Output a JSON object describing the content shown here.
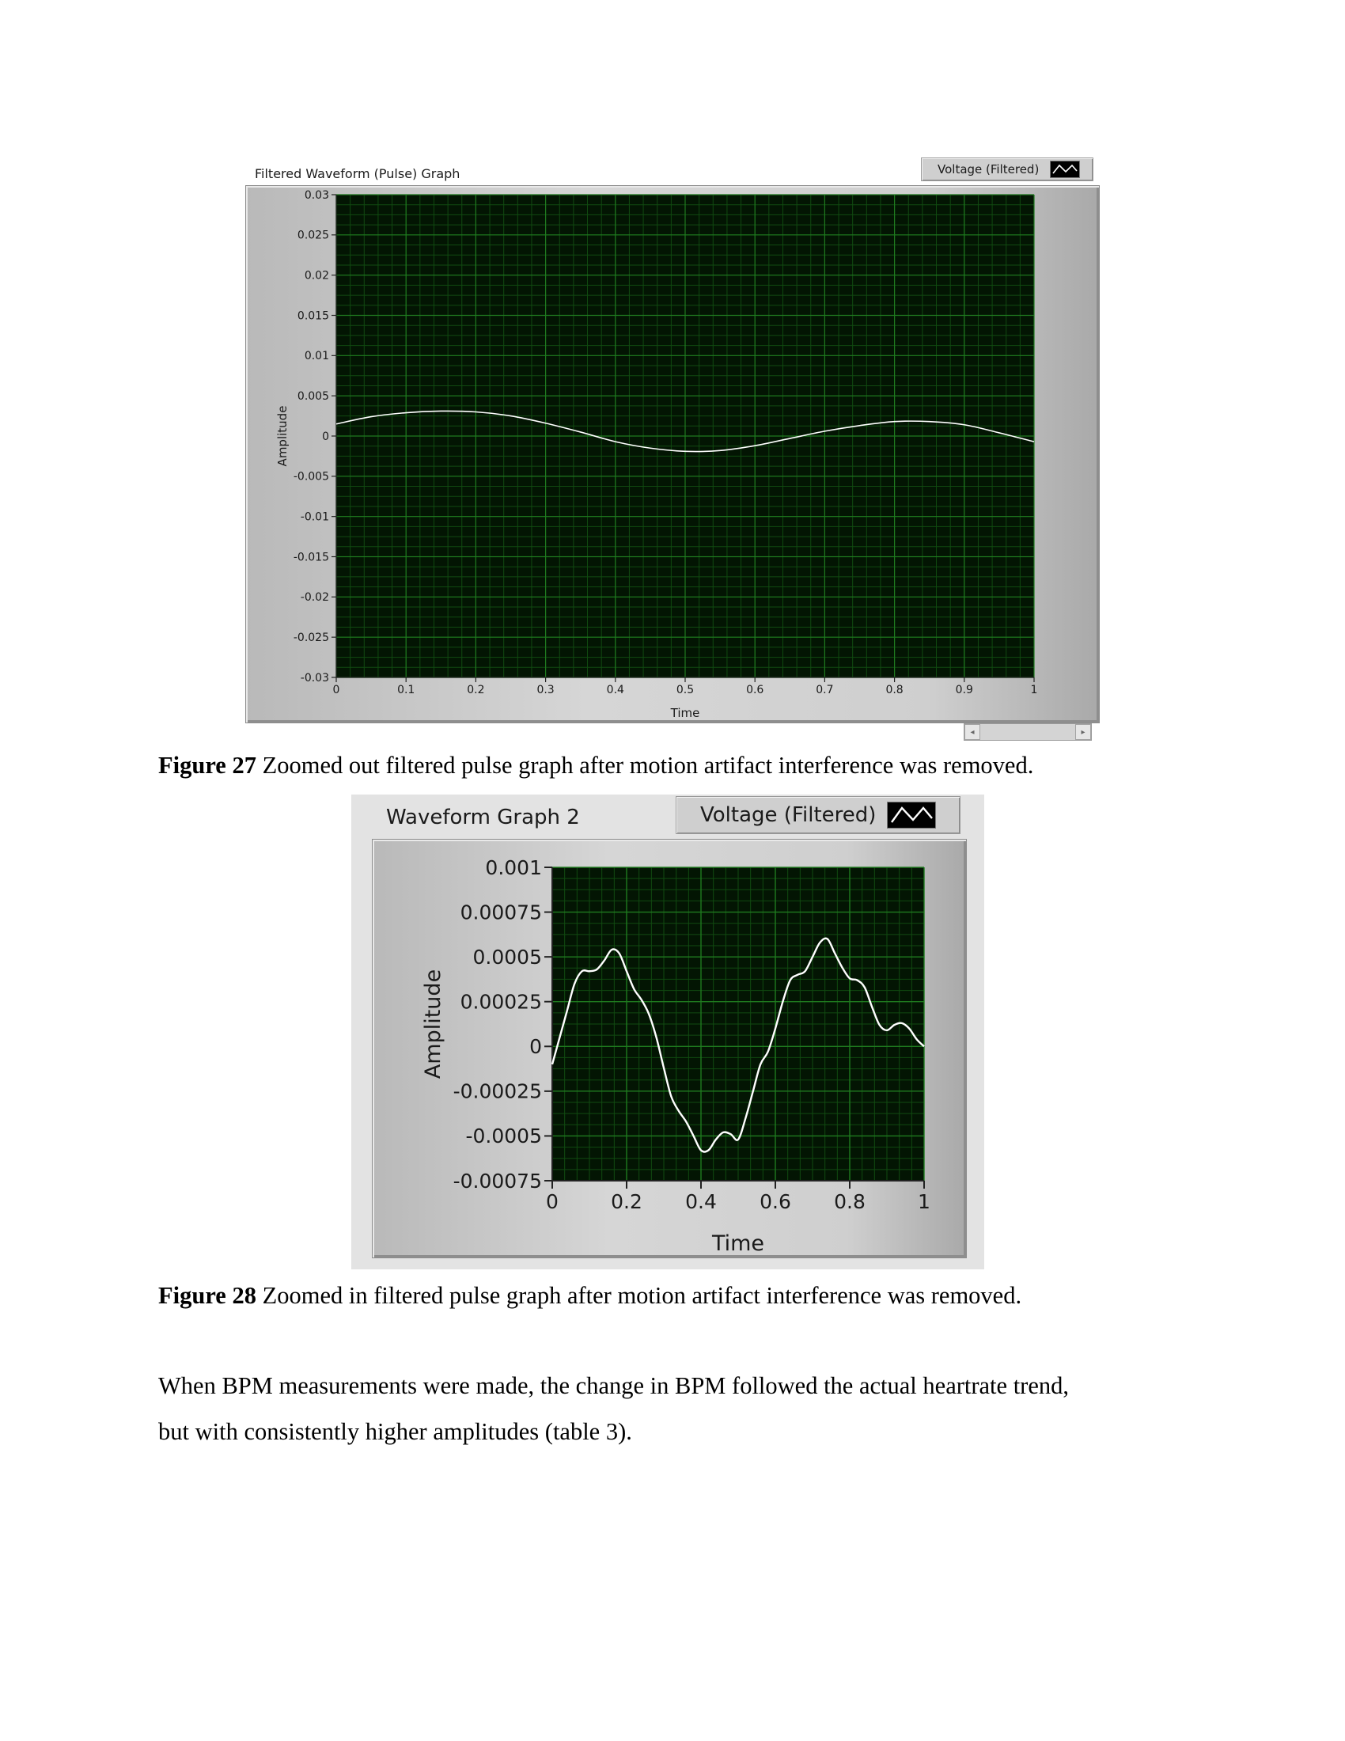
{
  "figures": [
    {
      "panel_title": "Filtered Waveform (Pulse) Graph",
      "legend_label": "Voltage (Filtered)",
      "caption_label": "Figure 27",
      "caption_text": " Zoomed out filtered pulse graph after motion artifact interference was removed."
    },
    {
      "panel_title": "Waveform Graph 2",
      "legend_label": "Voltage (Filtered)",
      "caption_label": "Figure 28",
      "caption_text": " Zoomed in filtered pulse graph after motion artifact interference was removed."
    }
  ],
  "paragraph": {
    "line1": "When BPM measurements were made, the change in BPM followed the actual heartrate trend,",
    "line2": "but with consistently higher amplitudes (table 3)."
  },
  "chart_data": [
    {
      "type": "line",
      "title": "Filtered Waveform (Pulse) Graph",
      "xlabel": "Time",
      "ylabel": "Amplitude",
      "xlim": [
        0,
        1
      ],
      "ylim": [
        -0.03,
        0.03
      ],
      "xticks": [
        "0",
        "0.1",
        "0.2",
        "0.3",
        "0.4",
        "0.5",
        "0.6",
        "0.7",
        "0.8",
        "0.9",
        "1"
      ],
      "yticks": [
        "0.03",
        "0.025",
        "0.02",
        "0.015",
        "0.01",
        "0.005",
        "0",
        "-0.005",
        "-0.01",
        "-0.015",
        "-0.02",
        "-0.025",
        "-0.03"
      ],
      "grid": true,
      "legend": "top-right",
      "series": [
        {
          "name": "Voltage (Filtered)",
          "x": [
            0,
            0.05,
            0.1,
            0.15,
            0.2,
            0.25,
            0.3,
            0.35,
            0.4,
            0.45,
            0.5,
            0.55,
            0.6,
            0.65,
            0.7,
            0.75,
            0.8,
            0.85,
            0.9,
            0.95,
            1
          ],
          "y": [
            0.0015,
            0.0024,
            0.0029,
            0.0031,
            0.003,
            0.0025,
            0.0016,
            0.0005,
            -0.0007,
            -0.0015,
            -0.0019,
            -0.0018,
            -0.0012,
            -0.0003,
            0.0006,
            0.0013,
            0.0018,
            0.0018,
            0.0014,
            0.0004,
            -0.0007
          ]
        }
      ],
      "colors": {
        "plot_bg": "#031503",
        "grid_major": "#1f7a1f",
        "grid_minor": "#114a11",
        "trace": "#ffffff"
      }
    },
    {
      "type": "line",
      "title": "Waveform Graph 2",
      "xlabel": "Time",
      "ylabel": "Amplitude",
      "xlim": [
        0,
        1
      ],
      "ylim": [
        -0.00075,
        0.001
      ],
      "xticks": [
        "0",
        "0.2",
        "0.4",
        "0.6",
        "0.8",
        "1"
      ],
      "yticks": [
        "0.001",
        "0.00075",
        "0.0005",
        "0.00025",
        "0",
        "-0.00025",
        "-0.0005",
        "-0.00075"
      ],
      "grid": true,
      "legend": "top-right",
      "series": [
        {
          "name": "Voltage (Filtered)",
          "x": [
            0,
            0.02,
            0.04,
            0.06,
            0.08,
            0.1,
            0.12,
            0.14,
            0.16,
            0.18,
            0.2,
            0.22,
            0.24,
            0.26,
            0.28,
            0.3,
            0.32,
            0.34,
            0.36,
            0.38,
            0.4,
            0.42,
            0.44,
            0.46,
            0.48,
            0.5,
            0.52,
            0.54,
            0.56,
            0.58,
            0.6,
            0.62,
            0.64,
            0.66,
            0.68,
            0.7,
            0.72,
            0.74,
            0.76,
            0.78,
            0.8,
            0.82,
            0.84,
            0.86,
            0.88,
            0.9,
            0.92,
            0.94,
            0.96,
            0.98,
            1
          ],
          "y": [
            -0.0001,
            5e-05,
            0.0002,
            0.00035,
            0.00042,
            0.00042,
            0.00043,
            0.00048,
            0.00054,
            0.00052,
            0.00042,
            0.00032,
            0.00026,
            0.00018,
            5e-05,
            -0.00012,
            -0.00028,
            -0.00036,
            -0.00042,
            -0.0005,
            -0.00058,
            -0.00058,
            -0.00052,
            -0.00048,
            -0.00049,
            -0.00052,
            -0.0004,
            -0.00025,
            -0.0001,
            -3e-05,
            0.0001,
            0.00025,
            0.00037,
            0.0004,
            0.00042,
            0.0005,
            0.00058,
            0.0006,
            0.00052,
            0.00044,
            0.00038,
            0.00037,
            0.00033,
            0.00022,
            0.00012,
            9e-05,
            0.00012,
            0.00013,
            0.0001,
            4e-05,
            0.0
          ]
        }
      ],
      "colors": {
        "plot_bg": "#031503",
        "grid_major": "#1f7a1f",
        "grid_minor": "#114a11",
        "trace": "#ffffff"
      }
    }
  ]
}
